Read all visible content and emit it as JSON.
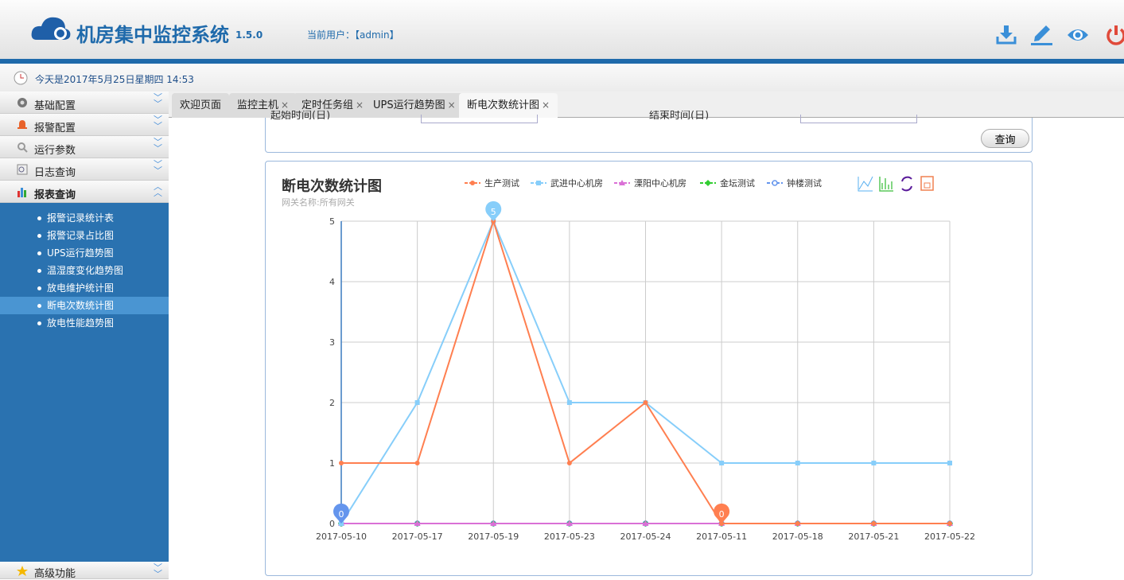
{
  "header": {
    "title": "机房集中监控系统",
    "version": "1.5.0",
    "user_label": "当前用户：【admin】",
    "icons": [
      "download-icon",
      "edit-icon",
      "eye-icon",
      "power-icon"
    ]
  },
  "datebar": {
    "text": "今天是2017年5月25日星期四 14:53"
  },
  "sidebar": {
    "menus": [
      {
        "label": "基础配置",
        "icon": "gear-icon"
      },
      {
        "label": "报警配置",
        "icon": "bell-icon"
      },
      {
        "label": "运行参数",
        "icon": "search-icon"
      },
      {
        "label": "日志查询",
        "icon": "log-icon"
      },
      {
        "label": "报表查询",
        "icon": "chart-icon"
      }
    ],
    "submenu": [
      "报警记录统计表",
      "报警记录占比图",
      "UPS运行趋势图",
      "温湿度变化趋势图",
      "放电维护统计图",
      "断电次数统计图",
      "放电性能趋势图"
    ],
    "active_sub": 5,
    "bottom_menu": {
      "label": "高级功能",
      "icon": "star-icon"
    }
  },
  "tabs": [
    {
      "label": "欢迎页面",
      "closable": false
    },
    {
      "label": "监控主机",
      "closable": true
    },
    {
      "label": "定时任务组",
      "closable": true
    },
    {
      "label": "UPS运行趋势图",
      "closable": true
    },
    {
      "label": "断电次数统计图",
      "closable": true,
      "active": true
    }
  ],
  "query": {
    "button": "查询",
    "start_label": "起始时间(日)",
    "end_label": "结束时间(日)"
  },
  "chart_data": {
    "type": "line",
    "title": "断电次数统计图",
    "subtitle": "网关名称:所有网关",
    "categories": [
      "2017-05-10",
      "2017-05-17",
      "2017-05-19",
      "2017-05-23",
      "2017-05-24",
      "2017-05-11",
      "2017-05-18",
      "2017-05-21",
      "2017-05-22"
    ],
    "ylim": [
      0,
      5
    ],
    "yticks": [
      0,
      1,
      2,
      3,
      4,
      5
    ],
    "grid": true,
    "legend": "top",
    "series": [
      {
        "name": "生产测试",
        "color": "#ff7f50",
        "marker": "circle",
        "values": [
          1,
          1,
          5,
          1,
          2,
          0,
          0,
          0,
          0
        ]
      },
      {
        "name": "武进中心机房",
        "color": "#87cefa",
        "marker": "square",
        "values": [
          0,
          2,
          5,
          2,
          2,
          1,
          1,
          1,
          1
        ]
      },
      {
        "name": "溧阳中心机房",
        "color": "#da70d6",
        "marker": "triangle",
        "values": [
          0,
          0,
          0,
          0,
          0,
          0,
          0,
          0,
          0
        ]
      },
      {
        "name": "金坛测试",
        "color": "#32cd32",
        "marker": "diamond",
        "values": [
          0,
          0,
          0,
          0,
          0,
          0,
          0,
          0,
          0
        ]
      },
      {
        "name": "钟楼测试",
        "color": "#6495ed",
        "marker": "emptyCircle",
        "values": [
          0,
          0,
          0,
          0,
          0,
          0,
          0,
          0,
          0
        ]
      }
    ],
    "mark_points": [
      {
        "series": "武进中心机房",
        "category": "2017-05-19",
        "value": 5
      },
      {
        "series": "生产测试",
        "category": "2017-05-11",
        "value": 0
      },
      {
        "series": "钟楼测试",
        "category": "2017-05-10",
        "value": 0
      }
    ],
    "toolbox": [
      "line-chart-icon",
      "bar-chart-icon",
      "refresh-icon",
      "save-icon"
    ]
  }
}
